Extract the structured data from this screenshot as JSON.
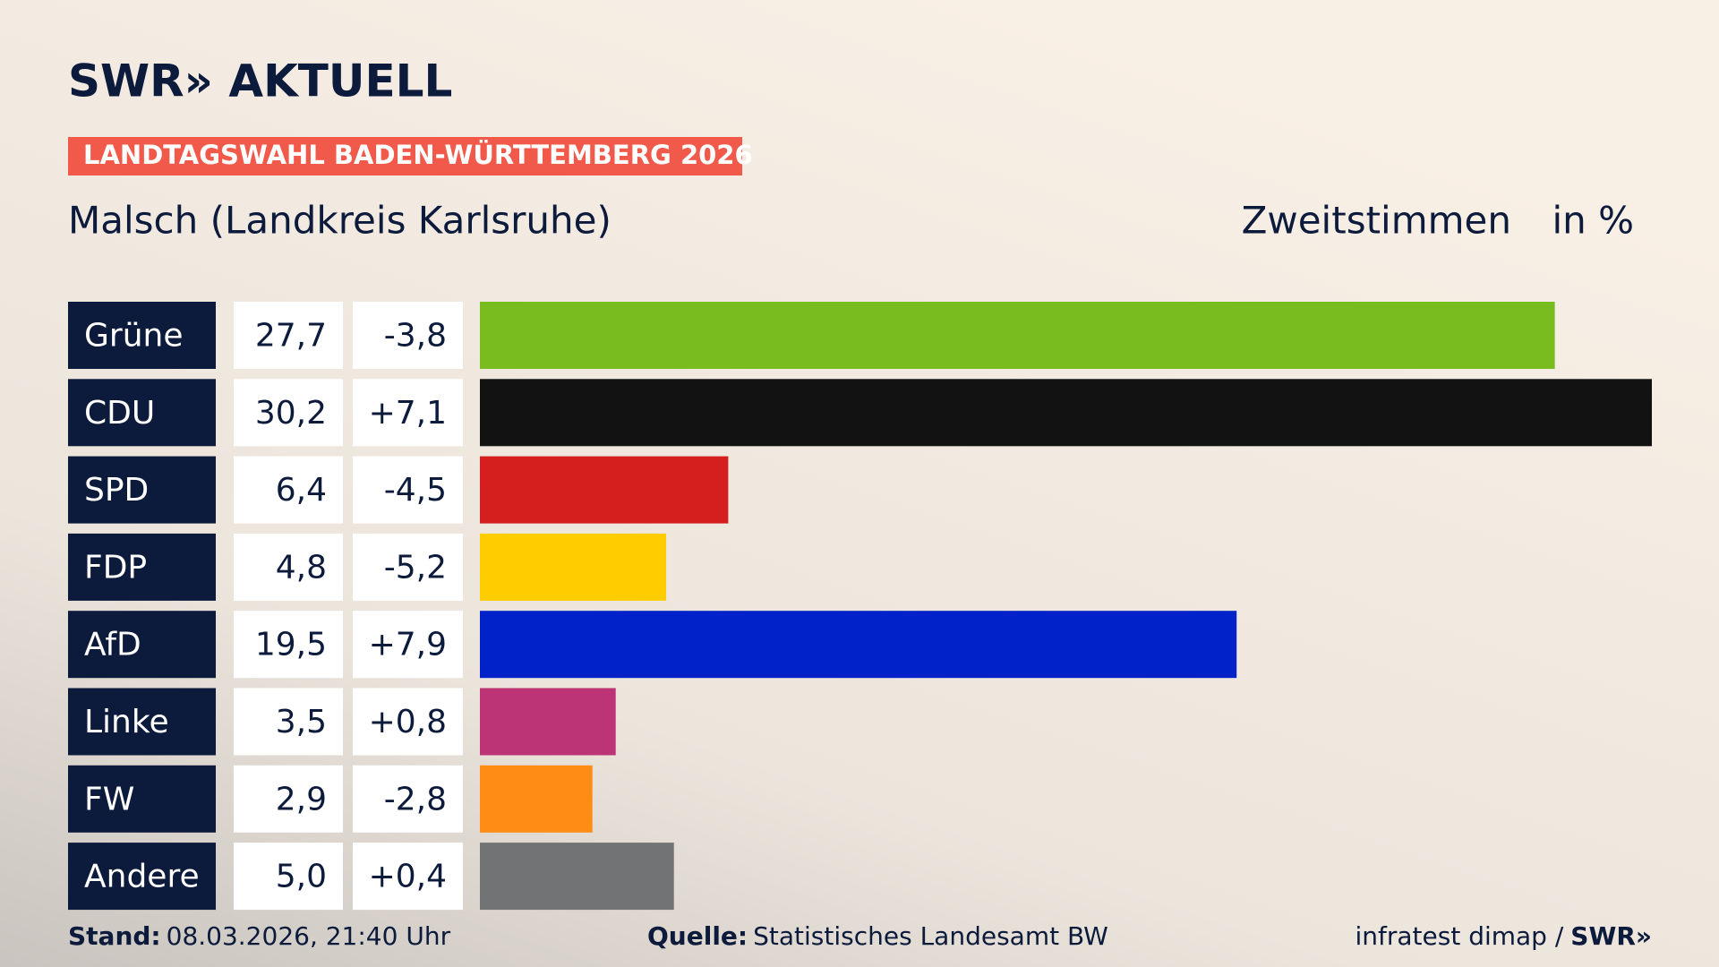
{
  "chart_data": {
    "type": "bar",
    "brand": "SWR» AKTUELL",
    "banner": "LANDTAGSWAHL BADEN-WÜRTTEMBERG 2026",
    "title": "Malsch (Landkreis Karlsruhe)",
    "measure": "Zweitstimmen",
    "unit": "in %",
    "categories": [
      "Grüne",
      "CDU",
      "SPD",
      "FDP",
      "AfD",
      "Linke",
      "FW",
      "Andere"
    ],
    "values": [
      27.7,
      30.2,
      6.4,
      4.8,
      19.5,
      3.5,
      2.9,
      5.0
    ],
    "value_labels": [
      "27,7",
      "30,2",
      "6,4",
      "4,8",
      "19,5",
      "3,5",
      "2,9",
      "5,0"
    ],
    "changes": [
      -3.8,
      7.1,
      -4.5,
      -5.2,
      7.9,
      0.8,
      -2.8,
      0.4
    ],
    "change_labels": [
      "-3,8",
      "+7,1",
      "-4,5",
      "-5,2",
      "+7,9",
      "+0,8",
      "-2,8",
      "+0,4"
    ],
    "colors": [
      "#78bc1e",
      "#121212",
      "#d51f1e",
      "#ffcc00",
      "#0022c8",
      "#bc3475",
      "#ff8c14",
      "#727375"
    ],
    "footer": {
      "stand_label": "Stand:",
      "stand": "08.03.2026, 21:40 Uhr",
      "source_label": "Quelle:",
      "source": "Statistisches Landesamt BW",
      "credit": "infratest dimap /",
      "credit_brand": "SWR»"
    }
  }
}
